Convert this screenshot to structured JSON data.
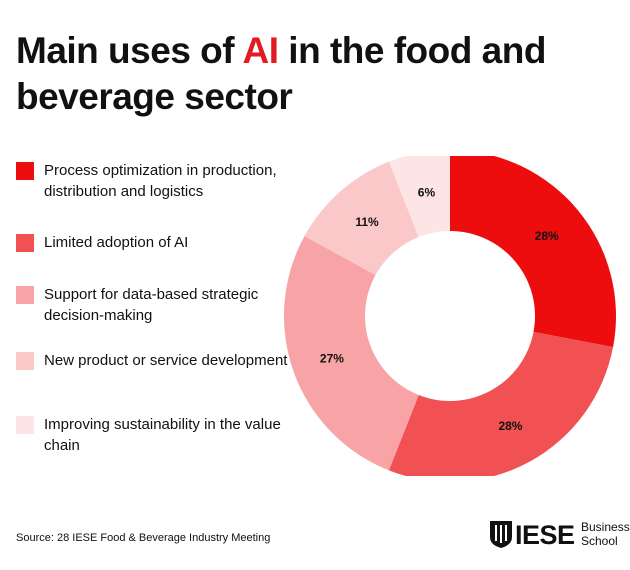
{
  "title": {
    "part1": "Main uses of ",
    "highlight": "AI",
    "part2": " in the food and beverage sector"
  },
  "colors": {
    "accent": "#e11b22",
    "slices": [
      "#ee0d0e",
      "#f25153",
      "#f8a3a6",
      "#fbc8ca",
      "#fde5e6"
    ]
  },
  "legend": [
    {
      "label": "Process optimization in production, distribution and logistics",
      "color": "#ee0d0e"
    },
    {
      "label": "Limited adoption of AI",
      "color": "#f25153"
    },
    {
      "label": "Support for data-based strategic decision-making",
      "color": "#f8a3a6"
    },
    {
      "label": "New product or service development",
      "color": "#fbc8ca"
    },
    {
      "label": "Improving sustainability in the value chain",
      "color": "#fde5e6"
    }
  ],
  "chart_data": {
    "type": "pie",
    "title": "Main uses of AI in the food and beverage sector",
    "categories": [
      "Process optimization in production, distribution and logistics",
      "Limited adoption of AI",
      "Support for data-based strategic decision-making",
      "New product or service development",
      "Improving sustainability in the value chain"
    ],
    "values": [
      28,
      28,
      27,
      11,
      6
    ],
    "labels": [
      "28%",
      "28%",
      "27%",
      "11%",
      "6%"
    ],
    "donut": true,
    "legend_position": "left"
  },
  "source": "Source: 28 IESE Food & Beverage Industry Meeting",
  "logo": {
    "name": "IESE",
    "line1": "Business",
    "line2": "School"
  }
}
